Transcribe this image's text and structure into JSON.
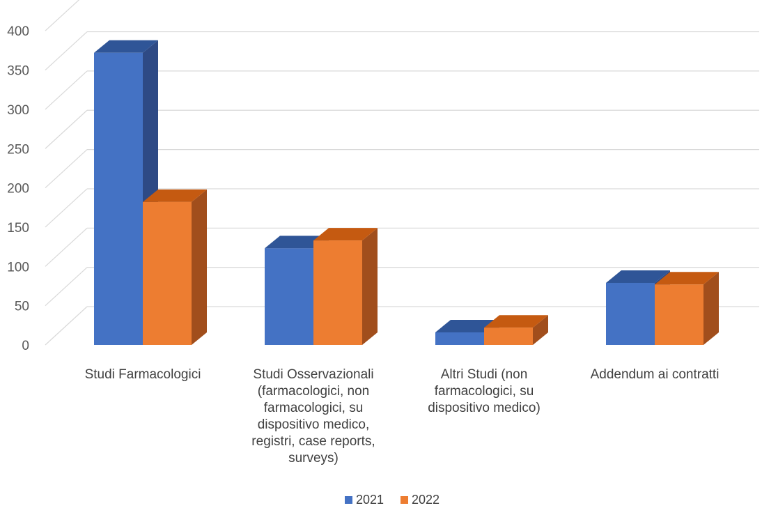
{
  "chart_data": {
    "type": "bar",
    "title": "",
    "xlabel": "",
    "ylabel": "",
    "ylim": [
      0,
      400
    ],
    "yticks": [
      0,
      50,
      100,
      150,
      200,
      250,
      300,
      350,
      400
    ],
    "grid": true,
    "legend_position": "bottom",
    "style": "3d-clustered-column",
    "categories": [
      [
        "Studi Farmacologici"
      ],
      [
        "Studi Osservazionali",
        "(farmacologici, non",
        "farmacologici, su",
        "dispositivo medico,",
        "registri, case reports,",
        "surveys)"
      ],
      [
        "Altri Studi (non",
        "farmacologici, su",
        "dispositivo medico)"
      ],
      [
        "Addendum ai contratti"
      ]
    ],
    "series": [
      {
        "name": "2021",
        "color": "#4472C4",
        "top_color": "#2F5597",
        "side_color": "#2E4A85",
        "values": [
          372,
          123,
          16,
          79
        ]
      },
      {
        "name": "2022",
        "color": "#ED7D31",
        "top_color": "#C55A11",
        "side_color": "#A14E1C",
        "values": [
          182,
          133,
          22,
          77
        ]
      }
    ]
  }
}
